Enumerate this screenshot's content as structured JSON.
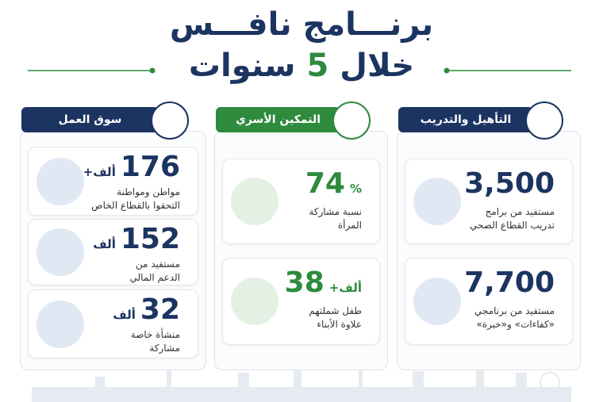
{
  "header": {
    "line1": "برنـــامج نافـــس",
    "line2_start": "خلال",
    "line2_number": "5",
    "line2_end": "سنوات"
  },
  "columns": [
    {
      "title": "سوق العمل",
      "stats": [
        {
          "value": "176",
          "unit": "ألف+",
          "lines": [
            "مواطن ومواطنة",
            "التحقوا بالقطاع الخاص"
          ]
        },
        {
          "value": "152",
          "unit": "ألف",
          "lines": [
            "مستفيد من",
            "الدعم المالي"
          ]
        },
        {
          "value": "32",
          "unit": "ألف",
          "lines": [
            "منشأة خاصة",
            "مشاركة"
          ]
        }
      ]
    },
    {
      "title": "التمكين الأسري",
      "stats": [
        {
          "value": "74",
          "unit": "%",
          "lines": [
            "نسبة مشاركة",
            "المرأة"
          ]
        },
        {
          "value": "38",
          "unit": "ألف+",
          "lines": [
            "طفل شملتهم",
            "علاوة الأبناء"
          ]
        }
      ]
    },
    {
      "title": "التأهيل والتدريب",
      "stats": [
        {
          "value": "3,500",
          "lines": [
            "مستفيد من برامج",
            "تدريب القطاع الصحي"
          ]
        },
        {
          "value": "7,700",
          "lines": [
            "مستفيد من برنامجي",
            "«كفاءات» و«خبرة»"
          ]
        }
      ]
    }
  ]
}
